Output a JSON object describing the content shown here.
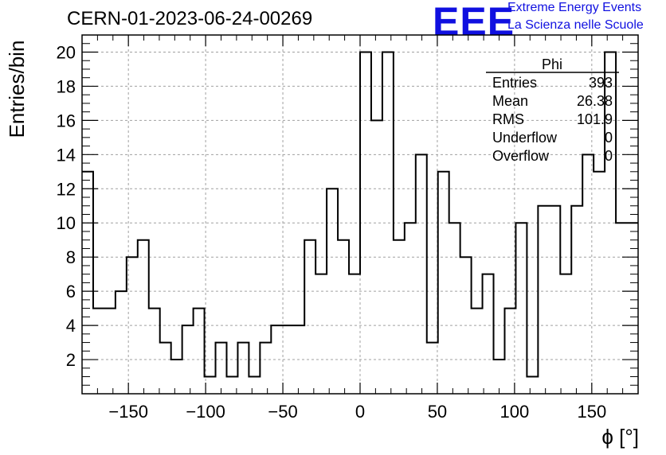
{
  "header": {
    "title": "CERN-01-2023-06-24-00269",
    "logo_text": "EEE",
    "logo_line1": "Extreme Energy Events",
    "logo_line2": "La Scienza nelle Scuole",
    "logo_color": "#1010e0"
  },
  "stats": {
    "name": "Phi",
    "rows": [
      {
        "label": "Entries",
        "value": "393"
      },
      {
        "label": "Mean",
        "value": "26.38"
      },
      {
        "label": "RMS",
        "value": "101.9"
      },
      {
        "label": "Underflow",
        "value": "0"
      },
      {
        "label": "Overflow",
        "value": "0"
      }
    ]
  },
  "chart_data": {
    "type": "bar",
    "style": "step-histogram",
    "xlabel": "ϕ [°]",
    "ylabel": "Entries/bin",
    "xlim": [
      -180,
      180
    ],
    "ylim": [
      0,
      21
    ],
    "bin_width": 7.2,
    "x_ticks": [
      -150,
      -100,
      -50,
      0,
      50,
      100,
      150
    ],
    "x_tick_labels": [
      "−150",
      "−100",
      "−50",
      "0",
      "50",
      "100",
      "150"
    ],
    "y_ticks": [
      2,
      4,
      6,
      8,
      10,
      12,
      14,
      16,
      18,
      20
    ],
    "y_tick_labels": [
      "2",
      "4",
      "6",
      "8",
      "10",
      "12",
      "14",
      "16",
      "18",
      "20"
    ],
    "grid": true,
    "values": [
      13,
      5,
      5,
      6,
      8,
      9,
      5,
      3,
      2,
      4,
      5,
      1,
      3,
      1,
      3,
      1,
      3,
      4,
      4,
      4,
      9,
      7,
      12,
      9,
      7,
      20,
      16,
      20,
      9,
      10,
      14,
      3,
      13,
      10,
      8,
      5,
      7,
      2,
      5,
      10,
      1,
      11,
      11,
      7,
      11,
      14,
      13,
      20,
      10,
      10
    ]
  }
}
